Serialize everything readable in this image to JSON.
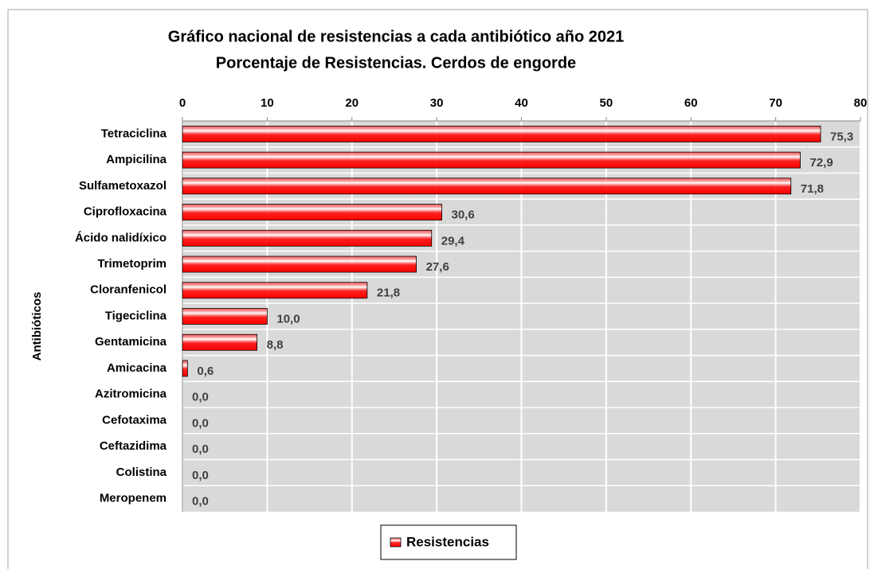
{
  "chart_data": {
    "type": "bar",
    "orientation": "horizontal",
    "title": "Gráfico nacional de resistencias a cada antibiótico año 2021",
    "subtitle": "Porcentaje de Resistencias. Cerdos de engorde",
    "y_label": "Antibióticos",
    "categories": [
      "Tetraciclina",
      "Ampicilina",
      "Sulfametoxazol",
      "Ciprofloxacina",
      "Ácido nalidíxico",
      "Trimetoprim",
      "Cloranfenicol",
      "Tigeciclina",
      "Gentamicina",
      "Amicacina",
      "Azitromicina",
      "Cefotaxima",
      "Ceftazidima",
      "Colistina",
      "Meropenem"
    ],
    "series": [
      {
        "name": "Resistencias",
        "color": "#ff0000",
        "values": [
          75.3,
          72.9,
          71.8,
          30.6,
          29.4,
          27.6,
          21.8,
          10.0,
          8.8,
          0.6,
          0.0,
          0.0,
          0.0,
          0.0,
          0.0
        ],
        "value_labels": [
          "75,3",
          "72,9",
          "71,8",
          "30,6",
          "29,4",
          "27,6",
          "21,8",
          "10,0",
          "8,8",
          "0,6",
          "0,0",
          "0,0",
          "0,0",
          "0,0",
          "0,0"
        ]
      }
    ],
    "xlim": [
      0,
      80
    ],
    "xticks": [
      0,
      10,
      20,
      30,
      40,
      50,
      60,
      70,
      80
    ],
    "grid": true,
    "legend": "bottom"
  }
}
